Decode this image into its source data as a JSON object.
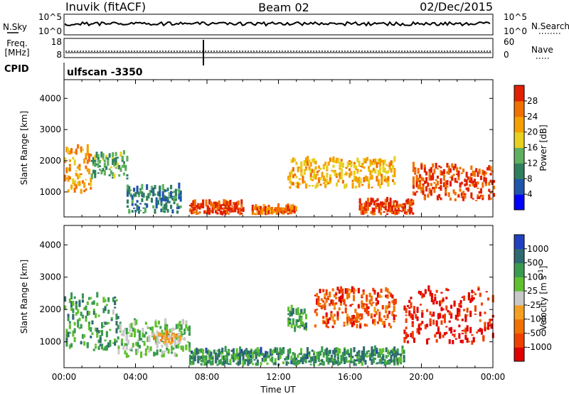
{
  "header": {
    "station": "Inuvik (fitACF)",
    "beam": "Beam 02",
    "date": "02/Dec/2015"
  },
  "strips": {
    "nsky_label": "N.Sky",
    "nsky_ticks": [
      "10^5",
      "10^0"
    ],
    "nsearch_label": "N.Search",
    "nsearch_ticks": [
      "10^5",
      "10^0"
    ],
    "freq_label_1": "Freq.",
    "freq_label_2": "[MHz]",
    "freq_ticks": [
      "18",
      "8"
    ],
    "nave_label": "Nave",
    "nave_ticks": [
      "60",
      "0"
    ],
    "cpid_label": "CPID",
    "cpid_value": "ulfscan -3350"
  },
  "chart_data": [
    {
      "type": "heatmap",
      "panel": "power",
      "ylabel": "Slant Range [km]",
      "ylim": [
        200,
        4600
      ],
      "yticks": [
        1000,
        2000,
        3000,
        4000
      ],
      "xlim": [
        0,
        24
      ],
      "colorbar_label": "Power [dB]",
      "colorbar_ticks": [
        "28",
        "24",
        "20",
        "16",
        "12",
        "8",
        "4"
      ],
      "colorscale": [
        "#0000ff",
        "#1f55aa",
        "#2f7f5f",
        "#5fb05f",
        "#e8d020",
        "#f5a000",
        "#f07000",
        "#e02000"
      ],
      "regions": [
        {
          "t": [
            0.0,
            1.5
          ],
          "r": [
            900,
            2400
          ],
          "level": 0.7
        },
        {
          "t": [
            1.5,
            3.5
          ],
          "r": [
            1400,
            2200
          ],
          "level": 0.4
        },
        {
          "t": [
            3.5,
            6.5
          ],
          "r": [
            300,
            1100
          ],
          "level": 0.3
        },
        {
          "t": [
            7.0,
            10.0
          ],
          "r": [
            250,
            600
          ],
          "level": 0.9
        },
        {
          "t": [
            10.5,
            13.0
          ],
          "r": [
            250,
            450
          ],
          "level": 0.8
        },
        {
          "t": [
            12.5,
            18.5
          ],
          "r": [
            1100,
            2000
          ],
          "level": 0.65
        },
        {
          "t": [
            16.5,
            19.5
          ],
          "r": [
            250,
            700
          ],
          "level": 0.92
        },
        {
          "t": [
            19.5,
            24.0
          ],
          "r": [
            700,
            1800
          ],
          "level": 0.9
        }
      ]
    },
    {
      "type": "heatmap",
      "panel": "velocity",
      "ylabel": "Slant Range [km]",
      "xlabel": "Time UT",
      "ylim": [
        200,
        4600
      ],
      "yticks": [
        1000,
        2000,
        3000,
        4000
      ],
      "xlim": [
        0,
        24
      ],
      "xticks": [
        "00:00",
        "04:00",
        "08:00",
        "12:00",
        "16:00",
        "20:00",
        "00:00"
      ],
      "colorbar_label": "Velocity [m s^-1]",
      "colorbar_ticks": [
        "1000",
        "500",
        "100",
        "25",
        "-25",
        "-100",
        "-500",
        "-1000"
      ],
      "colorscale": [
        "#e00000",
        "#f04000",
        "#f07000",
        "#f5a020",
        "#c8c8c8",
        "#60c030",
        "#3a9a50",
        "#2f6a70",
        "#2040c0"
      ],
      "regions": [
        {
          "t": [
            0.0,
            3.0
          ],
          "r": [
            700,
            2400
          ],
          "level": 0.7
        },
        {
          "t": [
            3.0,
            7.0
          ],
          "r": [
            500,
            1600
          ],
          "level": 0.6
        },
        {
          "t": [
            5.0,
            6.5
          ],
          "r": [
            900,
            1200
          ],
          "level": 0.45
        },
        {
          "t": [
            7.0,
            19.0
          ],
          "r": [
            250,
            700
          ],
          "level": 0.75
        },
        {
          "t": [
            12.5,
            13.5
          ],
          "r": [
            1300,
            2000
          ],
          "level": 0.7
        },
        {
          "t": [
            14.0,
            18.5
          ],
          "r": [
            1400,
            2600
          ],
          "level": 0.2
        },
        {
          "t": [
            19.0,
            24.0
          ],
          "r": [
            900,
            2600
          ],
          "level": 0.08
        }
      ]
    }
  ]
}
